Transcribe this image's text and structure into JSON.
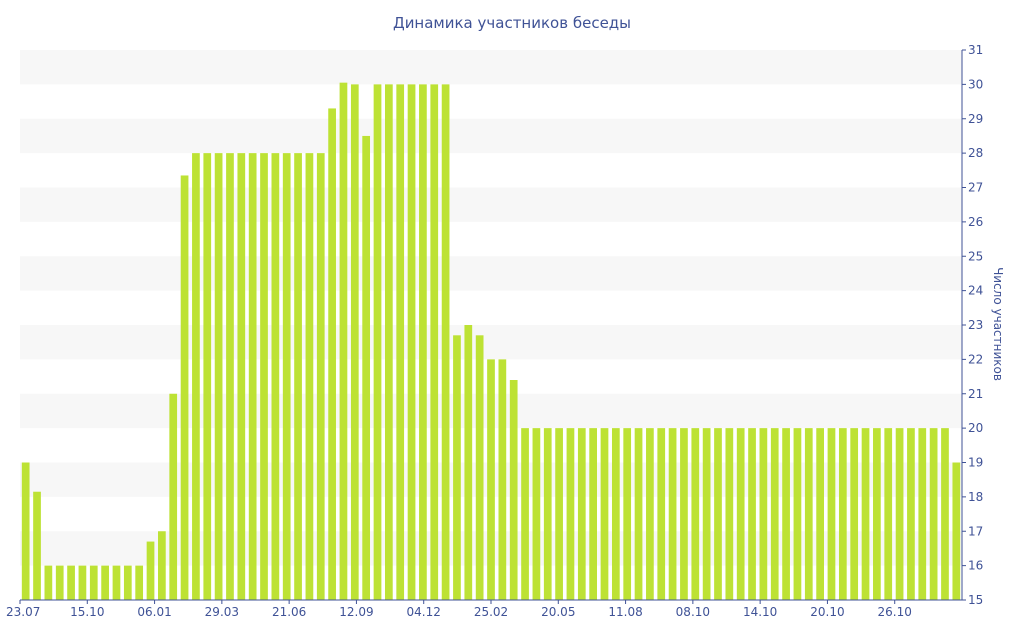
{
  "chart_data": {
    "type": "bar",
    "title": "Динамика участников беседы",
    "xlabel": "",
    "ylabel": "Число участников",
    "ylim": [
      15,
      31
    ],
    "y_ticks": [
      15,
      16,
      17,
      18,
      19,
      20,
      21,
      22,
      23,
      24,
      25,
      26,
      27,
      28,
      29,
      30,
      31
    ],
    "x_tick_labels": [
      "23.07",
      "15.10",
      "06.01",
      "29.03",
      "21.06",
      "12.09",
      "04.12",
      "25.02",
      "20.05",
      "11.08",
      "08.10",
      "14.10",
      "20.10",
      "26.10"
    ],
    "y_axis_position": "right",
    "grid": "horizontal bands",
    "bar_color": "#bde234",
    "band_color": "#f7f7f7",
    "axis_color": "#3f5296",
    "values": [
      19,
      18.15,
      16,
      16,
      16,
      16,
      16,
      16,
      16,
      16,
      16,
      16.7,
      17,
      21,
      27.35,
      28,
      28,
      28,
      28,
      28,
      28,
      28,
      28,
      28,
      28,
      28,
      28,
      29.3,
      30.05,
      30,
      28.5,
      30,
      30,
      30,
      30,
      30,
      30,
      30,
      22.7,
      23,
      22.7,
      22,
      22,
      21.4,
      20,
      20,
      20,
      20,
      20,
      20,
      20,
      20,
      20,
      20,
      20,
      20,
      20,
      20,
      20,
      20,
      20,
      20,
      20,
      20,
      20,
      20,
      20,
      20,
      20,
      20,
      20,
      20,
      20,
      20,
      20,
      20,
      20,
      20,
      20,
      20,
      20,
      20,
      19
    ]
  }
}
